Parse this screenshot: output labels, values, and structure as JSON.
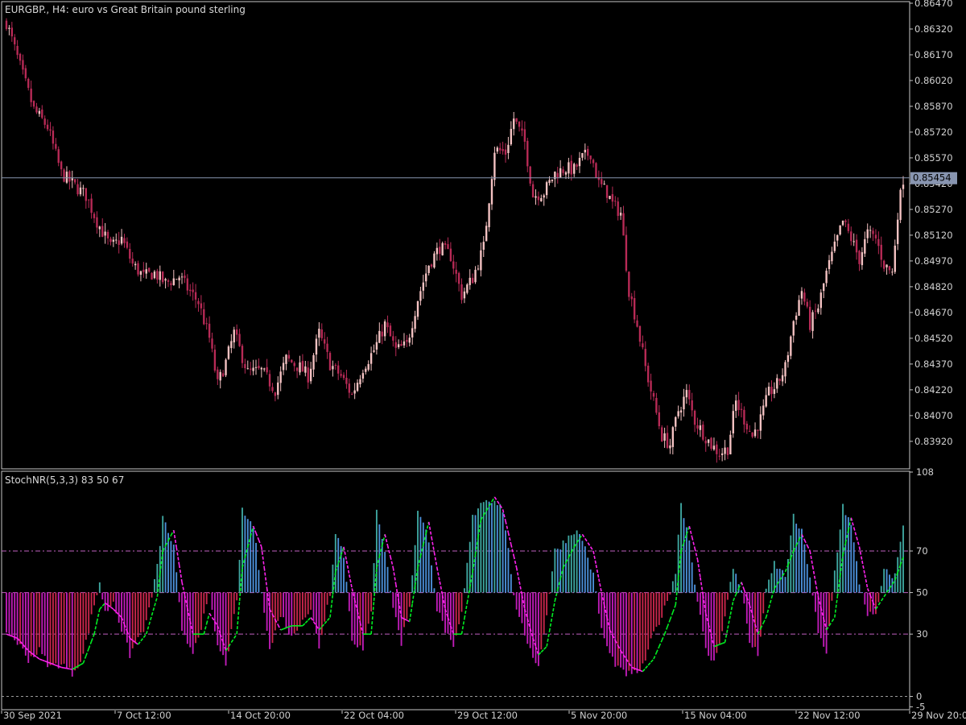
{
  "window": {
    "main_title": "EURGBP., H4:  euro vs Great Britain pound sterling",
    "indicator_title": "StochNR(5,3,3) 83 50 67",
    "current_price": "0.85454"
  },
  "colors": {
    "background": "#000000",
    "frame": "#c8c8c8",
    "bull_candle": "#f4c2c2",
    "bear_candle": "#b82a56",
    "price_line": "#8895b0",
    "bar_up_teal": "#3ea6a0",
    "bar_up_blue": "#4b8fd8",
    "bar_down_magenta": "#c01cb8",
    "bar_down_red": "#c8264c",
    "signal_green": "#00ee22",
    "signal_magenta": "#ff22ee",
    "level_line": "#c060c0",
    "zero_line": "#9a9a9a"
  },
  "chart_data": [
    {
      "type": "candlestick",
      "symbol": "EURGBP.",
      "timeframe": "H4",
      "title": "EURGBP., H4:  euro vs Great Britain pound sterling",
      "ylim": [
        0.8376,
        0.8647
      ],
      "y_ticks": [
        "0.86470",
        "0.86320",
        "0.86170",
        "0.86020",
        "0.85870",
        "0.85720",
        "0.85570",
        "0.85420",
        "0.85270",
        "0.85120",
        "0.84970",
        "0.84820",
        "0.84670",
        "0.84520",
        "0.84370",
        "0.84220",
        "0.84070",
        "0.83920"
      ],
      "current_price": 0.85454,
      "x_ticks": [
        "30 Sep 2021",
        "7 Oct 12:00",
        "14 Oct 20:00",
        "22 Oct 04:00",
        "29 Oct 12:00",
        "5 Nov 20:00",
        "15 Nov 04:00",
        "22 Nov 12:00",
        "29 Nov 20:00"
      ],
      "close_path": [
        [
          0,
          0.8636
        ],
        [
          6,
          0.8605
        ],
        [
          10,
          0.8585
        ],
        [
          15,
          0.8575
        ],
        [
          20,
          0.8548
        ],
        [
          24,
          0.8542
        ],
        [
          29,
          0.8535
        ],
        [
          33,
          0.852
        ],
        [
          38,
          0.8505
        ],
        [
          42,
          0.851
        ],
        [
          46,
          0.8495
        ],
        [
          50,
          0.8488
        ],
        [
          54,
          0.849
        ],
        [
          58,
          0.8484
        ],
        [
          63,
          0.8488
        ],
        [
          66,
          0.8481
        ],
        [
          70,
          0.8473
        ],
        [
          74,
          0.8452
        ],
        [
          77,
          0.8425
        ],
        [
          80,
          0.8438
        ],
        [
          83,
          0.8455
        ],
        [
          88,
          0.8432
        ],
        [
          93,
          0.8433
        ],
        [
          98,
          0.8422
        ],
        [
          102,
          0.844
        ],
        [
          107,
          0.8435
        ],
        [
          110,
          0.843
        ],
        [
          114,
          0.8455
        ],
        [
          118,
          0.8437
        ],
        [
          122,
          0.843
        ],
        [
          126,
          0.8419
        ],
        [
          130,
          0.8435
        ],
        [
          134,
          0.8445
        ],
        [
          138,
          0.846
        ],
        [
          142,
          0.8445
        ],
        [
          146,
          0.8448
        ],
        [
          150,
          0.8475
        ],
        [
          154,
          0.8495
        ],
        [
          158,
          0.8505
        ],
        [
          162,
          0.85
        ],
        [
          166,
          0.8477
        ],
        [
          170,
          0.8487
        ],
        [
          174,
          0.8505
        ],
        [
          178,
          0.8562
        ],
        [
          182,
          0.856
        ],
        [
          185,
          0.858
        ],
        [
          189,
          0.8566
        ],
        [
          192,
          0.8535
        ],
        [
          196,
          0.8537
        ],
        [
          200,
          0.8548
        ],
        [
          204,
          0.8551
        ],
        [
          207,
          0.855
        ],
        [
          210,
          0.8557
        ],
        [
          213,
          0.856
        ],
        [
          216,
          0.8542
        ],
        [
          219,
          0.8537
        ],
        [
          221,
          0.853
        ],
        [
          224,
          0.8525
        ],
        [
          227,
          0.848
        ],
        [
          230,
          0.846
        ],
        [
          233,
          0.8435
        ],
        [
          236,
          0.8415
        ],
        [
          239,
          0.8395
        ],
        [
          242,
          0.839
        ],
        [
          245,
          0.841
        ],
        [
          248,
          0.842
        ],
        [
          251,
          0.8404
        ],
        [
          254,
          0.8397
        ],
        [
          257,
          0.839
        ],
        [
          260,
          0.8385
        ],
        [
          263,
          0.8388
        ],
        [
          266,
          0.8415
        ],
        [
          269,
          0.8405
        ],
        [
          272,
          0.8395
        ],
        [
          275,
          0.8405
        ],
        [
          278,
          0.842
        ],
        [
          281,
          0.8425
        ],
        [
          284,
          0.8435
        ],
        [
          287,
          0.8462
        ],
        [
          290,
          0.848
        ],
        [
          293,
          0.846
        ],
        [
          296,
          0.847
        ],
        [
          299,
          0.849
        ],
        [
          302,
          0.8505
        ],
        [
          305,
          0.852
        ],
        [
          308,
          0.851
        ],
        [
          311,
          0.8498
        ],
        [
          314,
          0.8513
        ],
        [
          317,
          0.851
        ],
        [
          320,
          0.8495
        ],
        [
          323,
          0.849
        ],
        [
          325,
          0.8525
        ],
        [
          327,
          0.8545
        ]
      ]
    },
    {
      "type": "bar",
      "title": "StochNR(5,3,3) 83 50 67",
      "ylim": [
        -6,
        108
      ],
      "y_ticks": [
        "108",
        "70",
        "50",
        "30",
        "0",
        "-5"
      ],
      "levels": [
        70,
        50,
        30,
        0
      ],
      "baseline": 50,
      "x_ticks": [
        "30 Sep 2021",
        "7 Oct 12:00",
        "14 Oct 20:00",
        "22 Oct 04:00",
        "29 Oct 12:00",
        "5 Nov 20:00",
        "15 Nov 04:00",
        "22 Nov 12:00",
        "29 Nov 20:00"
      ],
      "main_path": [
        [
          0,
          32
        ],
        [
          4,
          26
        ],
        [
          8,
          18
        ],
        [
          12,
          22
        ],
        [
          16,
          14
        ],
        [
          20,
          16
        ],
        [
          24,
          11
        ],
        [
          28,
          20
        ],
        [
          32,
          44
        ],
        [
          34,
          55
        ],
        [
          36,
          40
        ],
        [
          39,
          46
        ],
        [
          42,
          32
        ],
        [
          45,
          20
        ],
        [
          48,
          28
        ],
        [
          51,
          35
        ],
        [
          55,
          62
        ],
        [
          57,
          86
        ],
        [
          61,
          72
        ],
        [
          64,
          30
        ],
        [
          68,
          22
        ],
        [
          72,
          38
        ],
        [
          74,
          48
        ],
        [
          77,
          24
        ],
        [
          80,
          16
        ],
        [
          84,
          45
        ],
        [
          86,
          89
        ],
        [
          90,
          82
        ],
        [
          93,
          52
        ],
        [
          96,
          22
        ],
        [
          100,
          40
        ],
        [
          104,
          28
        ],
        [
          108,
          38
        ],
        [
          111,
          41
        ],
        [
          114,
          24
        ],
        [
          118,
          50
        ],
        [
          120,
          80
        ],
        [
          123,
          68
        ],
        [
          126,
          28
        ],
        [
          130,
          22
        ],
        [
          133,
          40
        ],
        [
          135,
          91
        ],
        [
          138,
          70
        ],
        [
          141,
          43
        ],
        [
          144,
          26
        ],
        [
          147,
          44
        ],
        [
          150,
          89
        ],
        [
          154,
          76
        ],
        [
          157,
          42
        ],
        [
          160,
          32
        ],
        [
          163,
          22
        ],
        [
          166,
          40
        ],
        [
          170,
          86
        ],
        [
          173,
          94
        ],
        [
          178,
          95
        ],
        [
          181,
          90
        ],
        [
          186,
          40
        ],
        [
          189,
          30
        ],
        [
          192,
          20
        ],
        [
          194,
          14
        ],
        [
          197,
          40
        ],
        [
          200,
          70
        ],
        [
          203,
          74
        ],
        [
          207,
          80
        ],
        [
          210,
          76
        ],
        [
          214,
          58
        ],
        [
          217,
          32
        ],
        [
          220,
          20
        ],
        [
          224,
          12
        ],
        [
          228,
          10
        ],
        [
          232,
          14
        ],
        [
          236,
          30
        ],
        [
          240,
          42
        ],
        [
          244,
          60
        ],
        [
          246,
          94
        ],
        [
          249,
          75
        ],
        [
          252,
          46
        ],
        [
          255,
          22
        ],
        [
          258,
          16
        ],
        [
          262,
          38
        ],
        [
          265,
          62
        ],
        [
          268,
          52
        ],
        [
          271,
          26
        ],
        [
          274,
          20
        ],
        [
          277,
          50
        ],
        [
          280,
          64
        ],
        [
          284,
          58
        ],
        [
          287,
          86
        ],
        [
          290,
          79
        ],
        [
          293,
          58
        ],
        [
          296,
          30
        ],
        [
          299,
          20
        ],
        [
          302,
          60
        ],
        [
          305,
          92
        ],
        [
          308,
          82
        ],
        [
          311,
          55
        ],
        [
          314,
          40
        ],
        [
          317,
          38
        ],
        [
          320,
          60
        ],
        [
          324,
          58
        ],
        [
          327,
          83
        ]
      ],
      "signal_path": [
        [
          0,
          30
        ],
        [
          4,
          28
        ],
        [
          8,
          22
        ],
        [
          12,
          18
        ],
        [
          16,
          16
        ],
        [
          20,
          14
        ],
        [
          24,
          13
        ],
        [
          28,
          16
        ],
        [
          32,
          30
        ],
        [
          34,
          42
        ],
        [
          36,
          45
        ],
        [
          39,
          42
        ],
        [
          42,
          38
        ],
        [
          45,
          28
        ],
        [
          48,
          25
        ],
        [
          51,
          30
        ],
        [
          55,
          48
        ],
        [
          57,
          70
        ],
        [
          61,
          80
        ],
        [
          64,
          55
        ],
        [
          68,
          30
        ],
        [
          72,
          30
        ],
        [
          74,
          40
        ],
        [
          77,
          34
        ],
        [
          80,
          22
        ],
        [
          84,
          30
        ],
        [
          86,
          62
        ],
        [
          90,
          82
        ],
        [
          93,
          72
        ],
        [
          96,
          42
        ],
        [
          100,
          32
        ],
        [
          104,
          34
        ],
        [
          108,
          34
        ],
        [
          111,
          38
        ],
        [
          114,
          32
        ],
        [
          118,
          38
        ],
        [
          120,
          60
        ],
        [
          123,
          72
        ],
        [
          126,
          52
        ],
        [
          130,
          30
        ],
        [
          133,
          30
        ],
        [
          135,
          62
        ],
        [
          138,
          78
        ],
        [
          141,
          62
        ],
        [
          144,
          38
        ],
        [
          147,
          36
        ],
        [
          150,
          62
        ],
        [
          154,
          84
        ],
        [
          157,
          62
        ],
        [
          160,
          42
        ],
        [
          163,
          30
        ],
        [
          166,
          30
        ],
        [
          170,
          60
        ],
        [
          173,
          85
        ],
        [
          178,
          96
        ],
        [
          181,
          90
        ],
        [
          186,
          62
        ],
        [
          189,
          42
        ],
        [
          192,
          28
        ],
        [
          194,
          20
        ],
        [
          197,
          24
        ],
        [
          200,
          46
        ],
        [
          203,
          62
        ],
        [
          207,
          72
        ],
        [
          210,
          78
        ],
        [
          214,
          70
        ],
        [
          217,
          50
        ],
        [
          220,
          32
        ],
        [
          224,
          22
        ],
        [
          228,
          14
        ],
        [
          232,
          12
        ],
        [
          236,
          18
        ],
        [
          240,
          30
        ],
        [
          244,
          44
        ],
        [
          246,
          70
        ],
        [
          249,
          82
        ],
        [
          252,
          66
        ],
        [
          255,
          40
        ],
        [
          258,
          24
        ],
        [
          262,
          26
        ],
        [
          265,
          46
        ],
        [
          268,
          55
        ],
        [
          271,
          44
        ],
        [
          274,
          30
        ],
        [
          277,
          38
        ],
        [
          280,
          52
        ],
        [
          284,
          60
        ],
        [
          287,
          70
        ],
        [
          290,
          78
        ],
        [
          293,
          70
        ],
        [
          296,
          48
        ],
        [
          299,
          32
        ],
        [
          302,
          38
        ],
        [
          305,
          68
        ],
        [
          308,
          86
        ],
        [
          311,
          72
        ],
        [
          314,
          52
        ],
        [
          317,
          42
        ],
        [
          320,
          48
        ],
        [
          324,
          56
        ],
        [
          327,
          67
        ]
      ]
    }
  ]
}
